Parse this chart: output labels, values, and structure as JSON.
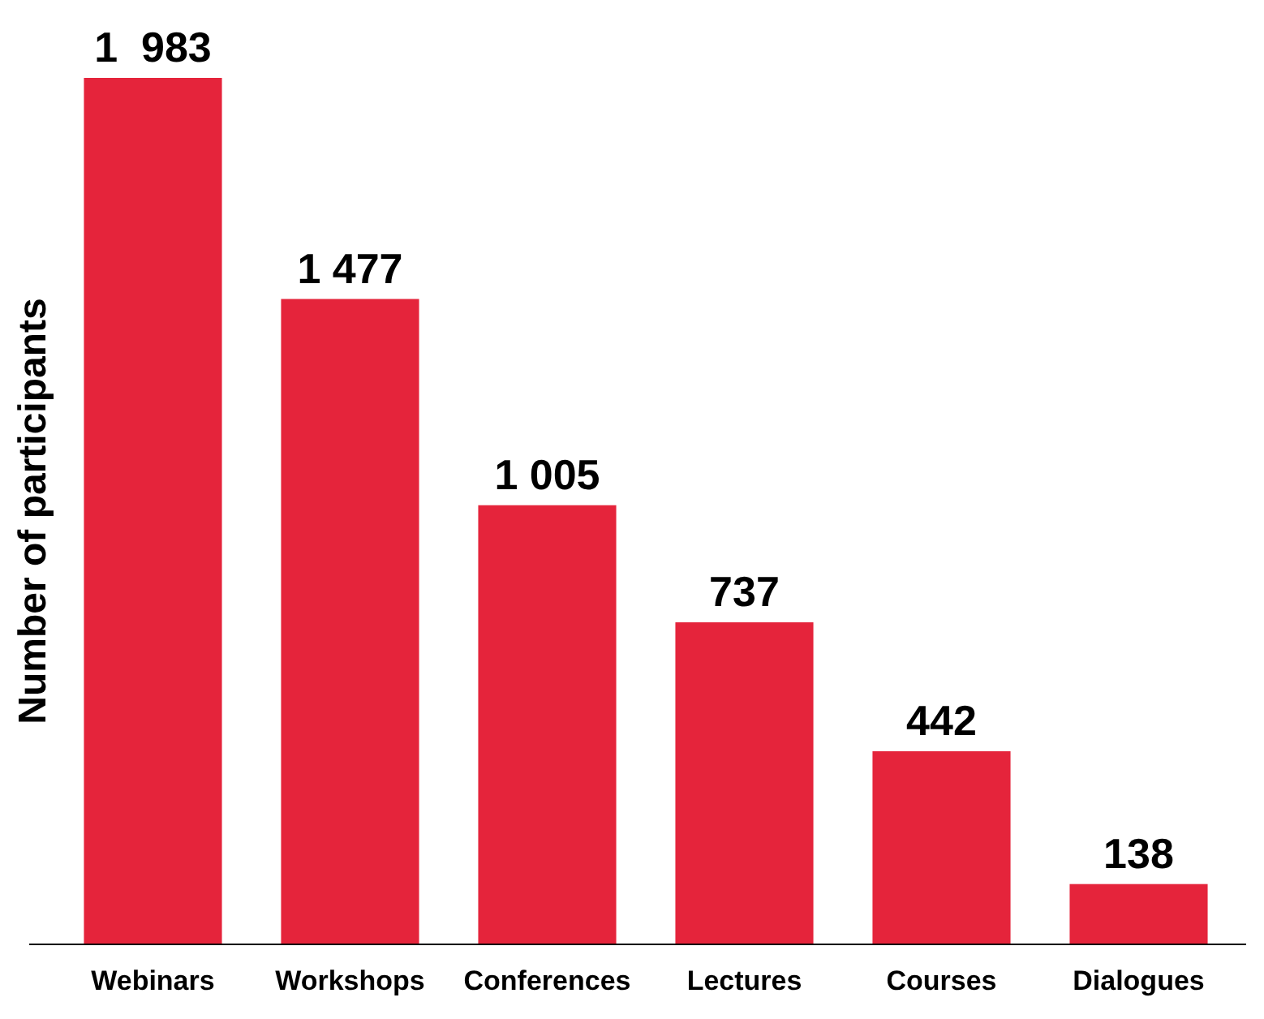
{
  "chart_data": {
    "type": "bar",
    "ylabel": "Number of participants",
    "categories": [
      "Webinars",
      "Workshops",
      "Conferences",
      "Lectures",
      "Courses",
      "Dialogues"
    ],
    "values": [
      1983,
      1477,
      1005,
      737,
      442,
      138
    ],
    "value_labels": [
      "1  983",
      "1 477",
      "1 005",
      "737",
      "442",
      "138"
    ],
    "color": "#e5243b"
  }
}
